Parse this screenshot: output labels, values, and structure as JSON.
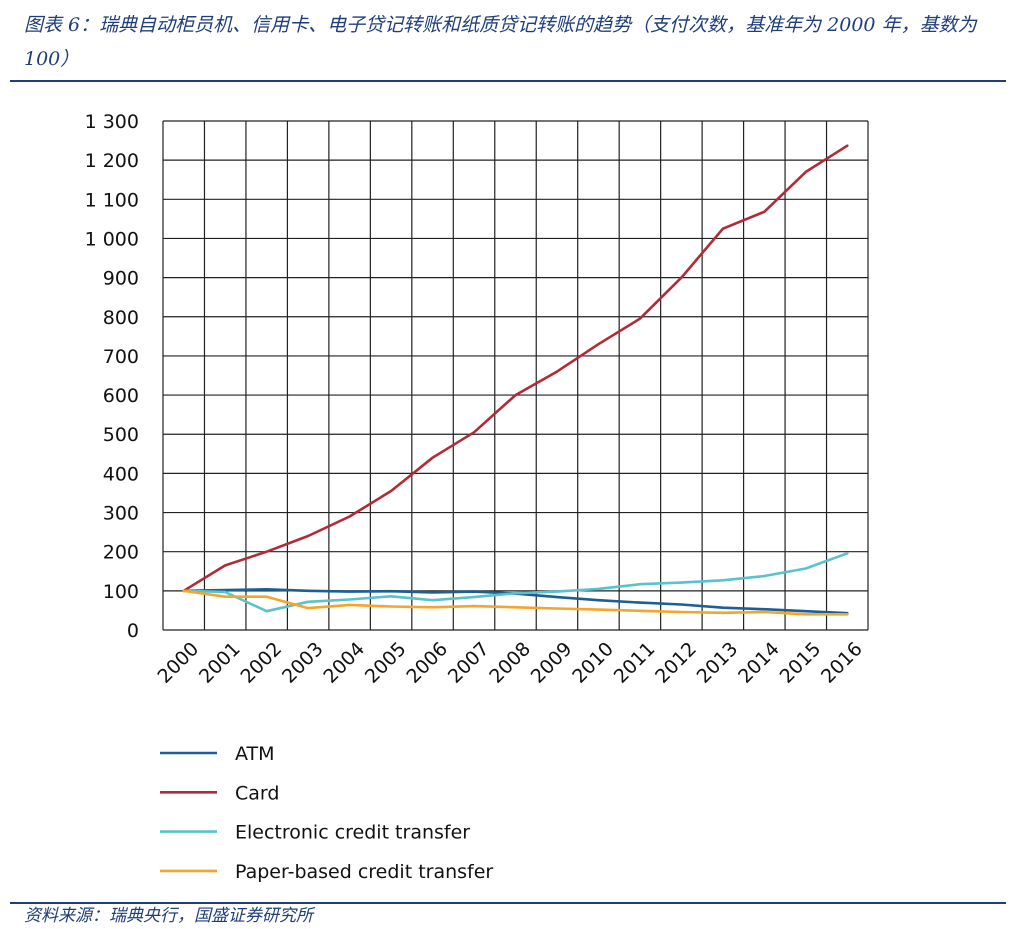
{
  "figure": {
    "title": "图表 6：瑞典自动柜员机、信用卡、电子贷记转账和纸质贷记转账的趋势（支付次数，基准年为 2000 年，基数为 100）",
    "source": "资料来源：瑞典央行，国盛证券研究所"
  },
  "chart_data": {
    "type": "line",
    "title": "",
    "xlabel": "",
    "ylabel": "",
    "x": [
      "2000",
      "2001",
      "2002",
      "2003",
      "2004",
      "2005",
      "2006",
      "2007",
      "2008",
      "2009",
      "2010",
      "2011",
      "2012",
      "2013",
      "2014",
      "2015",
      "2016"
    ],
    "ylim": [
      0,
      1300
    ],
    "yticks": [
      {
        "value": 0,
        "label": "0"
      },
      {
        "value": 100,
        "label": "100"
      },
      {
        "value": 200,
        "label": "200"
      },
      {
        "value": 300,
        "label": "300"
      },
      {
        "value": 400,
        "label": "400"
      },
      {
        "value": 500,
        "label": "500"
      },
      {
        "value": 600,
        "label": "600"
      },
      {
        "value": 700,
        "label": "700"
      },
      {
        "value": 800,
        "label": "800"
      },
      {
        "value": 900,
        "label": "900"
      },
      {
        "value": 1000,
        "label": "1 000"
      },
      {
        "value": 1100,
        "label": "1 100"
      },
      {
        "value": 1200,
        "label": "1 200"
      },
      {
        "value": 1300,
        "label": "1 300"
      }
    ],
    "grid": true,
    "legend_position": "bottom-left",
    "series": [
      {
        "name": "ATM",
        "color": "#1d5f95",
        "values": [
          100,
          102,
          104,
          100,
          98,
          99,
          96,
          98,
          93,
          84,
          76,
          70,
          65,
          57,
          53,
          48,
          43
        ]
      },
      {
        "name": "Card",
        "color": "#b12a36",
        "values": [
          100,
          165,
          200,
          240,
          290,
          355,
          440,
          505,
          600,
          660,
          730,
          795,
          900,
          1025,
          1068,
          1170,
          1237
        ]
      },
      {
        "name": "Electronic credit transfer",
        "color": "#5ac2cc",
        "values": [
          100,
          97,
          48,
          72,
          78,
          86,
          76,
          84,
          94,
          98,
          105,
          117,
          121,
          127,
          138,
          157,
          196
        ]
      },
      {
        "name": "Paper-based credit transfer",
        "color": "#f5a52a",
        "values": [
          100,
          85,
          85,
          56,
          64,
          60,
          58,
          61,
          58,
          55,
          52,
          49,
          46,
          44,
          46,
          40,
          40
        ]
      }
    ]
  }
}
